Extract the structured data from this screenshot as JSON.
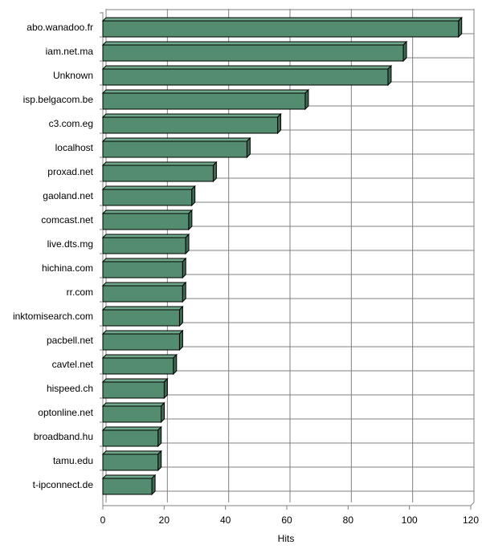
{
  "chart_data": {
    "type": "bar",
    "orientation": "horizontal",
    "style": "3d",
    "categories": [
      "abo.wanadoo.fr",
      "iam.net.ma",
      "Unknown",
      "isp.belgacom.be",
      "c3.com.eg",
      "localhost",
      "proxad.net",
      "gaoland.net",
      "comcast.net",
      "live.dts.mg",
      "hichina.com",
      "rr.com",
      "inktomisearch.com",
      "pacbell.net",
      "cavtel.net",
      "hispeed.ch",
      "optonline.net",
      "broadband.hu",
      "tamu.edu",
      "t-ipconnect.de"
    ],
    "values": [
      116,
      98,
      93,
      66,
      57,
      47,
      36,
      29,
      28,
      27,
      26,
      26,
      25,
      25,
      23,
      20,
      19,
      18,
      18,
      16
    ],
    "xlabel": "Hits",
    "xlim": [
      0,
      120
    ],
    "xticks": [
      0,
      20,
      40,
      60,
      80,
      100,
      120
    ],
    "grid": true,
    "colors": {
      "bar_front": "#548c70",
      "bar_top": "#6fa88a",
      "bar_side": "#3a6b52",
      "grid": "#808080",
      "outline": "#000000"
    }
  }
}
